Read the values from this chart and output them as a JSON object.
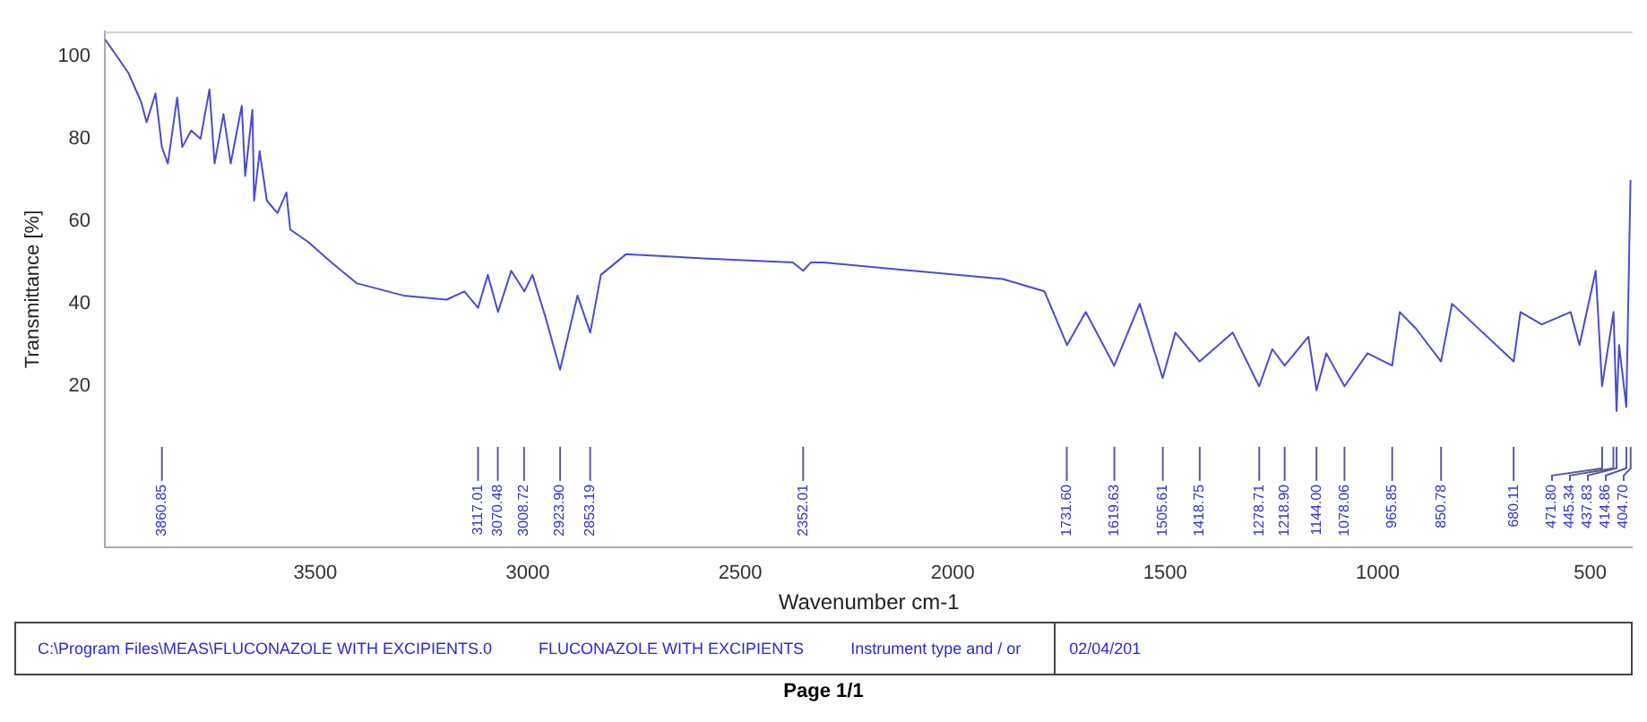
{
  "chart_data": {
    "type": "line",
    "xlabel": "Wavenumber cm-1",
    "ylabel": "Transmittance [%]",
    "x": [
      3994,
      3940,
      3910,
      3897,
      3876,
      3861,
      3847,
      3825,
      3813,
      3792,
      3770,
      3749,
      3737,
      3716,
      3699,
      3673,
      3665,
      3648,
      3644,
      3631,
      3614,
      3589,
      3568,
      3559,
      3517,
      3462,
      3403,
      3293,
      3191,
      3149,
      3117,
      3094,
      3070,
      3039,
      3008,
      2989,
      2959,
      2924,
      2883,
      2853,
      2828,
      2769,
      2587,
      2376,
      2352,
      2334,
      2304,
      1882,
      1784,
      1731,
      1687,
      1620,
      1560,
      1506,
      1476,
      1419,
      1341,
      1279,
      1248,
      1219,
      1163,
      1144,
      1121,
      1078,
      1024,
      966,
      948,
      910,
      851,
      825,
      680,
      664,
      614,
      546,
      525,
      487,
      472,
      445,
      438,
      432,
      415,
      405
    ],
    "series": [
      {
        "color": "#4b4bd0",
        "values": [
          104,
          96,
          89,
          84,
          91,
          78,
          74,
          90,
          78,
          82,
          80,
          92,
          74,
          86,
          74,
          88,
          71,
          87,
          65,
          77,
          65,
          62,
          67,
          58,
          55,
          50,
          45,
          42,
          41,
          43,
          39,
          47,
          38,
          48,
          43,
          47,
          37,
          24,
          42,
          33,
          47,
          52,
          51,
          50,
          48,
          50,
          50,
          46,
          43,
          30,
          38,
          25,
          40,
          22,
          33,
          26,
          33,
          20,
          29,
          25,
          32,
          19,
          28,
          20,
          28,
          25,
          38,
          34,
          26,
          40,
          26,
          38,
          35,
          38,
          30,
          48,
          20,
          38,
          14,
          30,
          15,
          70
        ]
      }
    ],
    "xlim": [
      3995,
      400
    ],
    "ylim": [
      -19,
      106
    ],
    "xticks": [
      3500,
      3000,
      2500,
      2000,
      1500,
      1000,
      500
    ],
    "yticks": [
      20,
      40,
      60,
      80,
      100
    ],
    "grid": false,
    "legend": false,
    "marker": "none",
    "line_style": "solid",
    "annotations": [
      {
        "text": "3860.85",
        "x": 3860.85
      },
      {
        "text": "3117.01",
        "x": 3117.01
      },
      {
        "text": "3070.48",
        "x": 3070.48
      },
      {
        "text": "3008.72",
        "x": 3008.72
      },
      {
        "text": "2923.90",
        "x": 2923.9
      },
      {
        "text": "2853.19",
        "x": 2853.19
      },
      {
        "text": "2352.01",
        "x": 2352.01
      },
      {
        "text": "1731.60",
        "x": 1731.6
      },
      {
        "text": "1619.63",
        "x": 1619.63
      },
      {
        "text": "1505.61",
        "x": 1505.61
      },
      {
        "text": "1418.75",
        "x": 1418.75
      },
      {
        "text": "1278.71",
        "x": 1278.71
      },
      {
        "text": "1218.90",
        "x": 1218.9
      },
      {
        "text": "1144.00",
        "x": 1144
      },
      {
        "text": "1078.06",
        "x": 1078.06
      },
      {
        "text": "965.85",
        "x": 965.85
      },
      {
        "text": "850.78",
        "x": 850.78
      },
      {
        "text": "680.11",
        "x": 680.11
      },
      {
        "text": "471.80",
        "x": 471.8
      },
      {
        "text": "445.34",
        "x": 445.34
      },
      {
        "text": "437.83",
        "x": 437.83
      },
      {
        "text": "414.86",
        "x": 414.86
      },
      {
        "text": "404.70",
        "x": 404.7
      },
      "C:\\Program Files\\MEAS\\FLUCONAZOLE WITH EXCIPIENTS.0",
      "FLUCONAZOLE WITH EXCIPIENTS",
      "Instrument type and / or",
      "02/04/201",
      "Page 1/1"
    ]
  }
}
